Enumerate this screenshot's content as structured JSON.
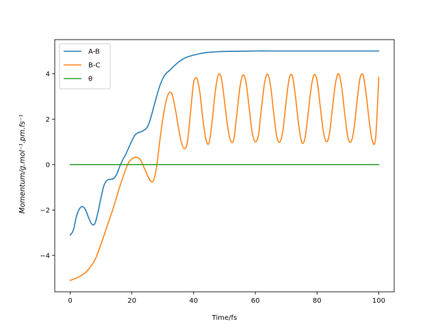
{
  "chart_data": {
    "type": "line",
    "xlabel": "Time/fs",
    "ylabel": "Momentum/g.mol⁻¹.pm.fs⁻¹",
    "xlim": [
      -5,
      105
    ],
    "ylim": [
      -5.6,
      5.5
    ],
    "xticks": [
      0,
      20,
      40,
      60,
      80,
      100
    ],
    "yticks": [
      -4,
      -2,
      0,
      2,
      4
    ],
    "legend_position": "top-left",
    "grid": false,
    "series": [
      {
        "name": "A-B",
        "color": "#1f77b4",
        "x": [
          0,
          1,
          2,
          3,
          4,
          5,
          6,
          7,
          8,
          9,
          10,
          11,
          12,
          13,
          14,
          15,
          16,
          17,
          18,
          19,
          20,
          21,
          22,
          23,
          24,
          25,
          26,
          27,
          28,
          29,
          30,
          31,
          32,
          33,
          34,
          35,
          36,
          37,
          38,
          40,
          42,
          44,
          46,
          48,
          50,
          55,
          60,
          65,
          70,
          75,
          80,
          85,
          90,
          95,
          100
        ],
        "y": [
          -3.1,
          -2.9,
          -2.3,
          -1.95,
          -1.85,
          -2.0,
          -2.35,
          -2.62,
          -2.6,
          -2.1,
          -1.45,
          -0.9,
          -0.68,
          -0.65,
          -0.62,
          -0.45,
          -0.1,
          0.2,
          0.45,
          0.75,
          1.05,
          1.3,
          1.4,
          1.45,
          1.52,
          1.65,
          2.0,
          2.5,
          3.0,
          3.45,
          3.78,
          4.0,
          4.12,
          4.25,
          4.38,
          4.5,
          4.6,
          4.68,
          4.74,
          4.82,
          4.88,
          4.93,
          4.95,
          4.97,
          4.98,
          4.99,
          5.0,
          5.0,
          5.0,
          5.0,
          5.0,
          5.0,
          5.0,
          5.0,
          5.0
        ]
      },
      {
        "name": "B-C",
        "color": "#ff7f0e",
        "x": [
          0,
          1,
          2,
          3,
          4,
          5,
          6,
          7,
          8,
          9,
          10,
          11,
          12,
          13,
          14,
          15,
          16,
          17,
          18,
          19,
          20,
          21,
          22,
          23,
          24,
          25,
          26,
          27,
          28,
          29,
          30,
          31,
          32,
          33,
          34,
          35,
          36,
          37,
          38,
          39,
          40,
          41,
          42,
          43,
          44,
          45,
          46,
          47,
          48,
          49,
          50,
          51,
          52,
          53,
          54,
          55,
          56,
          57,
          58,
          59,
          60,
          61,
          62,
          63,
          64,
          65,
          66,
          67,
          68,
          69,
          70,
          71,
          72,
          73,
          74,
          75,
          76,
          77,
          78,
          79,
          80,
          81,
          82,
          83,
          84,
          85,
          86,
          87,
          88,
          89,
          90,
          91,
          92,
          93,
          94,
          95,
          96,
          97,
          98,
          99,
          100
        ],
        "y": [
          -5.1,
          -5.05,
          -5.0,
          -4.93,
          -4.85,
          -4.75,
          -4.6,
          -4.42,
          -4.2,
          -3.88,
          -3.5,
          -3.1,
          -2.7,
          -2.3,
          -1.9,
          -1.45,
          -1.0,
          -0.6,
          -0.2,
          0.1,
          0.25,
          0.32,
          0.3,
          0.15,
          -0.15,
          -0.45,
          -0.72,
          -0.7,
          -0.1,
          1.0,
          2.0,
          2.75,
          3.15,
          3.1,
          2.5,
          1.7,
          1.0,
          0.7,
          1.0,
          2.3,
          3.6,
          3.8,
          3.2,
          2.0,
          1.1,
          0.95,
          1.9,
          3.2,
          3.95,
          3.8,
          2.8,
          1.7,
          1.05,
          1.1,
          2.2,
          3.4,
          3.95,
          3.6,
          2.5,
          1.4,
          1.0,
          1.3,
          2.5,
          3.6,
          3.98,
          3.4,
          2.2,
          1.2,
          1.0,
          1.55,
          2.8,
          3.8,
          3.9,
          3.0,
          1.8,
          1.0,
          1.1,
          2.1,
          3.3,
          3.95,
          3.7,
          2.6,
          1.5,
          1.0,
          1.35,
          2.5,
          3.6,
          4.0,
          3.4,
          2.2,
          1.2,
          1.0,
          1.6,
          2.85,
          3.85,
          3.9,
          3.0,
          1.8,
          1.0,
          1.2,
          3.85
        ]
      },
      {
        "name": "θ",
        "color": "#2ca02c",
        "x": [
          0,
          100
        ],
        "y": [
          0,
          0
        ]
      }
    ]
  }
}
